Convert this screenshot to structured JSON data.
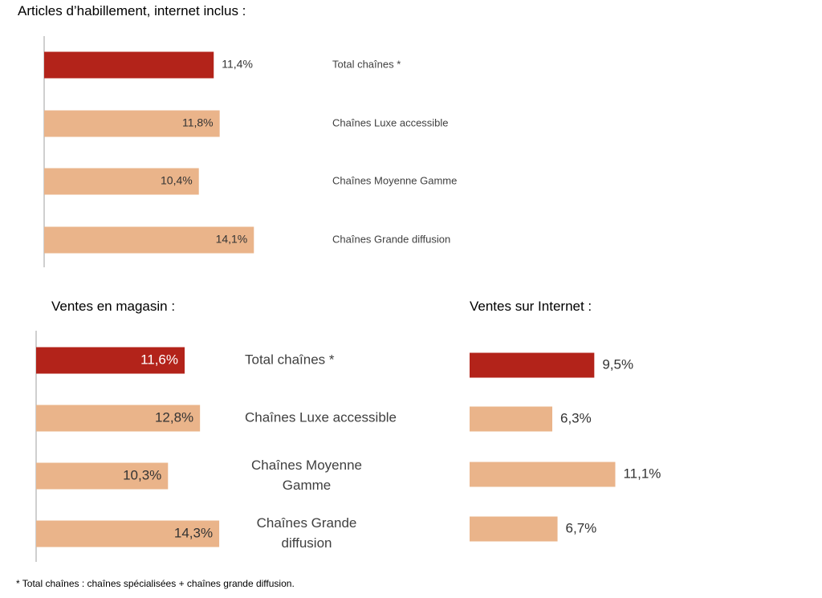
{
  "colors": {
    "total": "#B3231A",
    "category": "#EAB48A",
    "axis": "#BFBFBF",
    "label": "#404040",
    "value": "#333333"
  },
  "chart_data": [
    {
      "type": "bar",
      "orientation": "horizontal",
      "title": "Articles d’habillement, internet inclus :",
      "categories": [
        "Total chaînes *",
        "Chaînes Luxe accessible",
        "Chaînes Moyenne Gamme",
        "Chaînes Grande diffusion"
      ],
      "values": [
        11.4,
        11.8,
        10.4,
        14.1
      ],
      "labels": [
        "11,4%",
        "11,8%",
        "10,4%",
        "14,1%"
      ],
      "label_position": [
        "outside",
        "inside",
        "inside",
        "inside"
      ]
    },
    {
      "type": "bar",
      "orientation": "horizontal",
      "title": "Ventes en magasin :",
      "categories": [
        [
          "Total chaînes *"
        ],
        [
          "Chaînes Luxe accessible"
        ],
        [
          "Chaînes Moyenne",
          "Gamme"
        ],
        [
          "Chaînes Grande",
          "diffusion"
        ]
      ],
      "values": [
        11.6,
        12.8,
        10.3,
        14.3
      ],
      "labels": [
        "11,6%",
        "12,8%",
        "10,3%",
        "14,3%"
      ],
      "label_position": [
        "inside",
        "inside",
        "inside",
        "inside"
      ]
    },
    {
      "type": "bar",
      "orientation": "horizontal",
      "title": "Ventes sur Internet :",
      "categories": [],
      "values": [
        9.5,
        6.3,
        11.1,
        6.7
      ],
      "labels": [
        "9,5%",
        "6,3%",
        "11,1%",
        "6,7%"
      ],
      "label_position": [
        "outside",
        "outside",
        "outside",
        "outside"
      ]
    }
  ],
  "footnote": "* Total chaînes : chaînes spécialisées + chaînes grande diffusion."
}
